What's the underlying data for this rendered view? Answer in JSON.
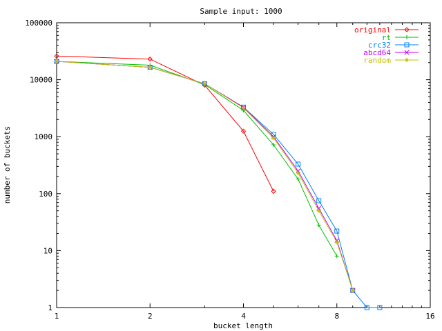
{
  "chart_data": {
    "type": "line",
    "title": "Sample input: 1000",
    "xlabel": "bucket length",
    "ylabel": "number of buckets",
    "x_scale": "log2",
    "y_scale": "log10",
    "xlim": [
      1,
      16
    ],
    "ylim": [
      1,
      100000
    ],
    "grid": false,
    "legend_position": "top-right",
    "x_ticks": [
      {
        "value": 1,
        "label": "1"
      },
      {
        "value": 2,
        "label": "2"
      },
      {
        "value": 4,
        "label": "4"
      },
      {
        "value": 8,
        "label": "8"
      },
      {
        "value": 16,
        "label": "16"
      }
    ],
    "y_ticks": [
      {
        "value": 1,
        "label": "1"
      },
      {
        "value": 10,
        "label": "10"
      },
      {
        "value": 100,
        "label": "100"
      },
      {
        "value": 1000,
        "label": "1000"
      },
      {
        "value": 10000,
        "label": "10000"
      },
      {
        "value": 100000,
        "label": "100000"
      }
    ],
    "series": [
      {
        "name": "original",
        "color": "#ff0000",
        "marker": "diamond",
        "points": [
          [
            1,
            26000
          ],
          [
            2,
            23000
          ],
          [
            3,
            8000
          ],
          [
            4,
            1250
          ],
          [
            5,
            110
          ]
        ]
      },
      {
        "name": "rt",
        "color": "#00c000",
        "marker": "plus",
        "points": [
          [
            1,
            21000
          ],
          [
            2,
            18000
          ],
          [
            3,
            8200
          ],
          [
            4,
            2900
          ],
          [
            5,
            720
          ],
          [
            6,
            180
          ],
          [
            7,
            28
          ],
          [
            8,
            8
          ]
        ]
      },
      {
        "name": "crc32",
        "color": "#0080ff",
        "marker": "square",
        "points": [
          [
            1,
            21000
          ],
          [
            2,
            16500
          ],
          [
            3,
            8500
          ],
          [
            4,
            3300
          ],
          [
            5,
            1100
          ],
          [
            6,
            330
          ],
          [
            7,
            75
          ],
          [
            8,
            22
          ],
          [
            9,
            2
          ],
          [
            10,
            1
          ],
          [
            11,
            1
          ]
        ]
      },
      {
        "name": "abcd64",
        "color": "#c000ff",
        "marker": "cross",
        "points": [
          [
            1,
            21000
          ],
          [
            2,
            16500
          ],
          [
            3,
            8500
          ],
          [
            4,
            3300
          ],
          [
            5,
            1000
          ],
          [
            6,
            250
          ],
          [
            7,
            55
          ],
          [
            8,
            15
          ],
          [
            9,
            2
          ]
        ]
      },
      {
        "name": "random",
        "color": "#c0c000",
        "marker": "star",
        "points": [
          [
            1,
            21000
          ],
          [
            2,
            16500
          ],
          [
            3,
            8500
          ],
          [
            4,
            3200
          ],
          [
            5,
            950
          ],
          [
            6,
            230
          ],
          [
            7,
            50
          ],
          [
            8,
            14
          ],
          [
            9,
            2
          ]
        ]
      }
    ]
  }
}
